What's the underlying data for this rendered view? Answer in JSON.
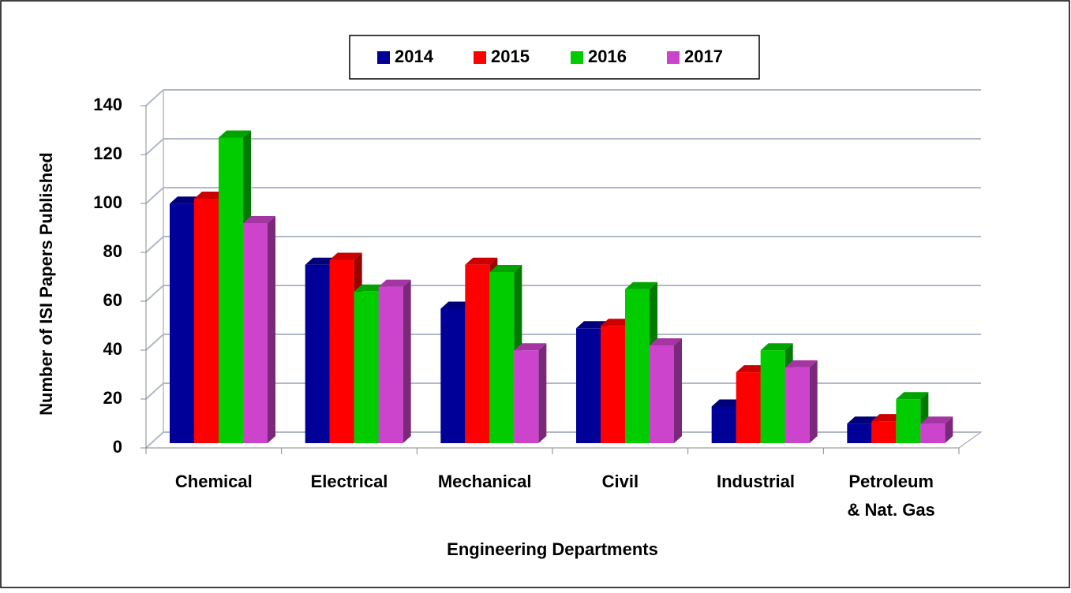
{
  "chart_data": {
    "type": "bar3d",
    "x_label": "Engineering Departments",
    "y_label": "Number of ISI Papers Published",
    "categories": [
      "Chemical",
      "Electrical",
      "Mechanical",
      "Civil",
      "Industrial",
      "Petroleum\n& Nat. Gas"
    ],
    "series": [
      {
        "name": "2014",
        "color": "#000099",
        "values": [
          98,
          73,
          55,
          47,
          15,
          8
        ]
      },
      {
        "name": "2015",
        "color": "#ff0000",
        "values": [
          100,
          75,
          73,
          48,
          29,
          9
        ]
      },
      {
        "name": "2016",
        "color": "#00cc00",
        "values": [
          125,
          62,
          70,
          63,
          38,
          18
        ]
      },
      {
        "name": "2017",
        "color": "#cc44cc",
        "values": [
          90,
          64,
          38,
          40,
          31,
          8
        ]
      }
    ],
    "ylim": [
      0,
      140
    ],
    "yticks": [
      0,
      20,
      40,
      60,
      80,
      100,
      120,
      140
    ],
    "grid": true,
    "legend": "top"
  }
}
